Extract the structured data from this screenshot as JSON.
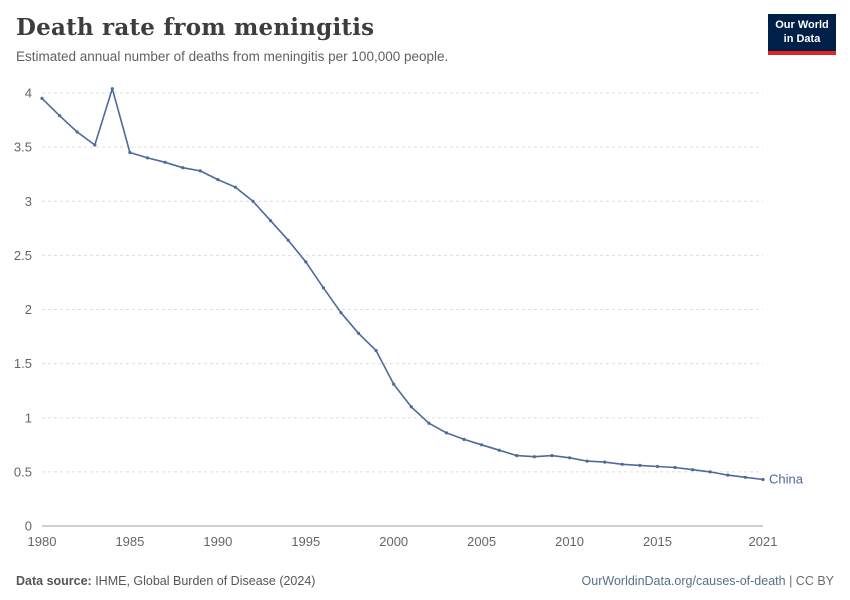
{
  "header": {
    "title": "Death rate from meningitis",
    "subtitle": "Estimated annual number of deaths from meningitis per 100,000 people."
  },
  "logo": {
    "line1": "Our World",
    "line2": "in Data"
  },
  "entity_label": "China",
  "footer": {
    "source_label": "Data source:",
    "source_text": " IHME, Global Burden of Disease (2024)",
    "link": "OurWorldinData.org/causes-of-death",
    "license": " | CC BY"
  },
  "colors": {
    "line": "#4C6A9C",
    "gridline": "#dddddd",
    "axis_line": "#a1a1a1",
    "tick_text": "#666666",
    "logo_bg": "#002147",
    "logo_accent": "#e0242a"
  },
  "chart_data": {
    "type": "line",
    "title": "Death rate from meningitis",
    "subtitle": "Estimated annual number of deaths from meningitis per 100,000 people.",
    "xlabel": "",
    "ylabel": "",
    "xlim": [
      1980,
      2021
    ],
    "ylim": [
      0,
      4
    ],
    "grid": "dashed-horizontal",
    "legend": "inline-end-label",
    "x_ticks": [
      1980,
      1985,
      1990,
      1995,
      2000,
      2005,
      2010,
      2015,
      2021
    ],
    "y_ticks": [
      0,
      0.5,
      1,
      1.5,
      2,
      2.5,
      3,
      3.5,
      4
    ],
    "y_tick_labels": [
      "0",
      "0.5",
      "1",
      "1.5",
      "2",
      "2.5",
      "3",
      "3.5",
      "4"
    ],
    "series": [
      {
        "name": "China",
        "x": [
          1980,
          1981,
          1982,
          1983,
          1984,
          1985,
          1986,
          1987,
          1988,
          1989,
          1990,
          1991,
          1992,
          1993,
          1994,
          1995,
          1996,
          1997,
          1998,
          1999,
          2000,
          2001,
          2002,
          2003,
          2004,
          2005,
          2006,
          2007,
          2008,
          2009,
          2010,
          2011,
          2012,
          2013,
          2014,
          2015,
          2016,
          2017,
          2018,
          2019,
          2020,
          2021
        ],
        "values": [
          3.95,
          3.79,
          3.64,
          3.52,
          4.04,
          3.45,
          3.4,
          3.36,
          3.31,
          3.28,
          3.2,
          3.13,
          3.0,
          2.82,
          2.64,
          2.44,
          2.2,
          1.97,
          1.78,
          1.62,
          1.31,
          1.1,
          0.95,
          0.86,
          0.8,
          0.75,
          0.7,
          0.65,
          0.64,
          0.65,
          0.63,
          0.6,
          0.59,
          0.57,
          0.56,
          0.55,
          0.54,
          0.52,
          0.5,
          0.47,
          0.45,
          0.43
        ]
      }
    ]
  }
}
